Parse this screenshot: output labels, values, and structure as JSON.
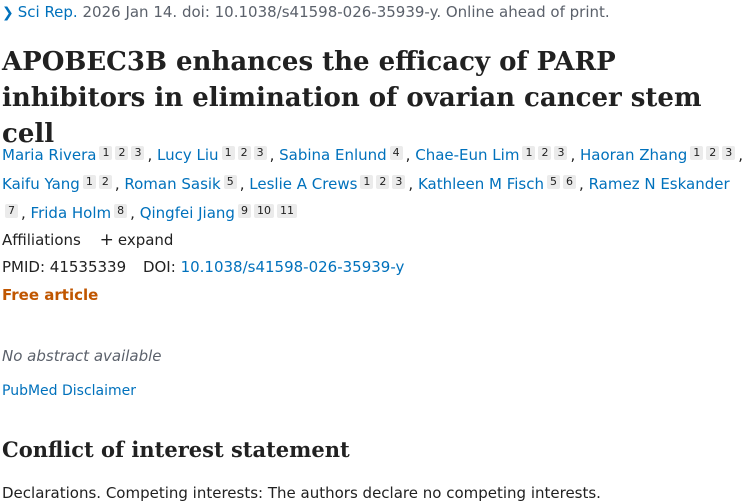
{
  "citation": {
    "journal": "Sci Rep.",
    "rest": "2026 Jan 14. doi: 10.1038/s41598-026-35939-y. Online ahead of print."
  },
  "title": "APOBEC3B enhances the efficacy of PARP inhibitors in elimination of ovarian cancer stem cell",
  "authors": [
    {
      "name": "Maria Rivera",
      "affs": [
        "1",
        "2",
        "3"
      ]
    },
    {
      "name": "Lucy Liu",
      "affs": [
        "1",
        "2",
        "3"
      ]
    },
    {
      "name": "Sabina Enlund",
      "affs": [
        "4"
      ]
    },
    {
      "name": "Chae-Eun Lim",
      "affs": [
        "1",
        "2",
        "3"
      ]
    },
    {
      "name": "Haoran Zhang",
      "affs": [
        "1",
        "2",
        "3"
      ]
    },
    {
      "name": "Kaifu Yang",
      "affs": [
        "1",
        "2"
      ]
    },
    {
      "name": "Roman Sasik",
      "affs": [
        "5"
      ]
    },
    {
      "name": "Leslie A Crews",
      "affs": [
        "1",
        "2",
        "3"
      ]
    },
    {
      "name": "Kathleen M Fisch",
      "affs": [
        "5",
        "6"
      ]
    },
    {
      "name": "Ramez N Eskander",
      "affs": [
        "7"
      ]
    },
    {
      "name": "Frida Holm",
      "affs": [
        "8"
      ]
    },
    {
      "name": "Qingfei Jiang",
      "affs": [
        "9",
        "10",
        "11"
      ]
    }
  ],
  "affiliations": {
    "label": "Affiliations",
    "expand_label": "expand"
  },
  "ids": {
    "pmid_label": "PMID:",
    "pmid": "41535339",
    "doi_label": "DOI:",
    "doi": "10.1038/s41598-026-35939-y"
  },
  "free_article": "Free article",
  "no_abstract": "No abstract available",
  "disclaimer": "PubMed Disclaimer",
  "coi": {
    "heading": "Conflict of interest statement",
    "text": "Declarations. Competing interests: The authors declare no competing interests."
  },
  "colors": {
    "link": "#0071bc",
    "free_article": "#c05600",
    "badge_bg": "#ebebeb"
  }
}
